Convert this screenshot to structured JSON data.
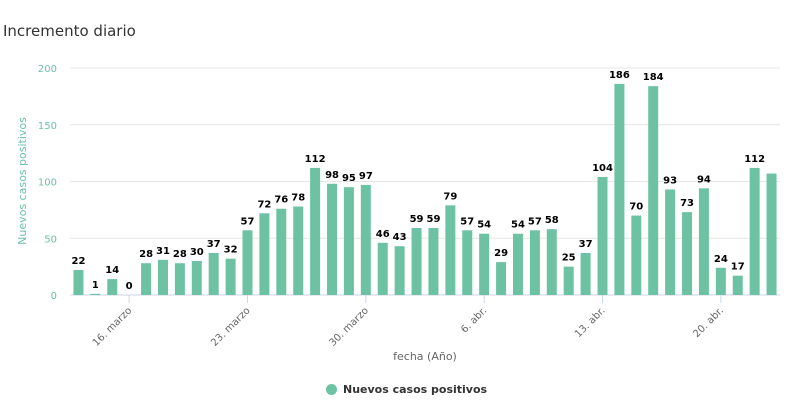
{
  "chart_data": {
    "type": "bar",
    "title": "Incremento diario",
    "xlabel": "fecha (Año)",
    "ylabel": "Nuevos casos positivos",
    "ylim": [
      0,
      200
    ],
    "yticks": [
      "0",
      "50",
      "100",
      "150",
      "200"
    ],
    "ytick_values": [
      0,
      50,
      100,
      150,
      200
    ],
    "xticks": [
      {
        "label": "16. marzo",
        "index": 3
      },
      {
        "label": "23. marzo",
        "index": 10
      },
      {
        "label": "30. marzo",
        "index": 17
      },
      {
        "label": "6. abr.",
        "index": 24
      },
      {
        "label": "13. abr.",
        "index": 31
      },
      {
        "label": "20. abr.",
        "index": 38
      }
    ],
    "start_date": "13. marzo",
    "values": [
      22,
      1,
      14,
      0,
      28,
      31,
      28,
      30,
      37,
      32,
      57,
      72,
      76,
      78,
      112,
      98,
      95,
      97,
      46,
      43,
      59,
      59,
      79,
      57,
      54,
      29,
      54,
      57,
      58,
      25,
      37,
      104,
      186,
      70,
      184,
      93,
      73,
      94,
      24,
      17,
      112,
      107
    ],
    "labeled": [
      true,
      true,
      true,
      true,
      true,
      true,
      true,
      true,
      true,
      true,
      true,
      true,
      true,
      true,
      true,
      true,
      true,
      true,
      true,
      true,
      true,
      true,
      true,
      true,
      true,
      true,
      true,
      true,
      true,
      true,
      true,
      true,
      true,
      true,
      true,
      true,
      true,
      true,
      true,
      true,
      true,
      false
    ],
    "grid": true,
    "legend": {
      "entries": [
        "Nuevos casos positivos"
      ],
      "position": "bottom"
    },
    "color": "#6cc2a3"
  }
}
